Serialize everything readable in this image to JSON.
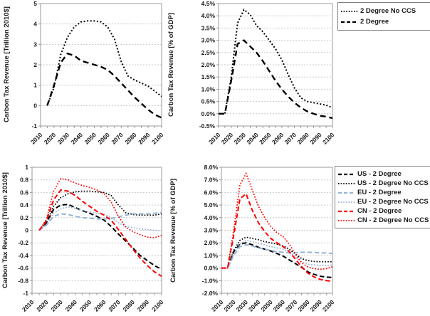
{
  "page": {
    "background": "#ffffff"
  },
  "colors": {
    "us": "#000000",
    "eu": "#95B3D7",
    "cn": "#FF0000",
    "grid": "#c9c9c9",
    "axis": "#9a9a9a",
    "text": "#1a1a1a"
  },
  "years": [
    2010,
    2015,
    2020,
    2025,
    2030,
    2035,
    2040,
    2045,
    2050,
    2055,
    2060,
    2065,
    2070,
    2075,
    2080,
    2085,
    2090,
    2095,
    2100
  ],
  "x_tick_labels": [
    "2010",
    "2020",
    "2030",
    "2040",
    "2050",
    "2060",
    "2070",
    "2080",
    "2090",
    "2100"
  ],
  "chart_data": [
    {
      "type": "line",
      "name": "global-carbon-tax-revenue-trillion",
      "title": "",
      "xlabel": "",
      "ylabel": "Carbon Tax Revenue [Trillion 2010$]",
      "ylim": [
        -1,
        5
      ],
      "grid": true,
      "ytick_values": [
        5,
        4,
        3,
        2,
        1,
        0,
        -1
      ],
      "ytick_labels": [
        "5",
        "4",
        "3",
        "2",
        "1",
        "0",
        "-1"
      ],
      "series": [
        {
          "name": "2 Degree No CCS",
          "color": "#000000",
          "line_style": "dotted",
          "values": [
            null,
            0,
            0.9,
            2.5,
            3.35,
            3.85,
            4.1,
            4.15,
            4.15,
            4.1,
            3.85,
            3.25,
            2.15,
            1.45,
            1.25,
            1.1,
            0.95,
            0.7,
            0.45
          ]
        },
        {
          "name": "2 Degree",
          "color": "#000000",
          "line_style": "dashed",
          "values": [
            null,
            0,
            1.0,
            2.1,
            2.55,
            2.45,
            2.2,
            2.1,
            2.0,
            1.9,
            1.75,
            1.45,
            1.1,
            0.75,
            0.4,
            0.1,
            -0.2,
            -0.45,
            -0.6
          ]
        }
      ],
      "legend": null
    },
    {
      "type": "line",
      "name": "global-carbon-tax-revenue-percent-gdp",
      "title": "",
      "xlabel": "",
      "ylabel": "Carbon Tax Revenue [% of GDP]",
      "ylim": [
        -0.5,
        4.5
      ],
      "grid": true,
      "ytick_values": [
        4.5,
        4.0,
        3.5,
        3.0,
        2.5,
        2.0,
        1.5,
        1.0,
        0.5,
        0.0,
        -0.5
      ],
      "ytick_labels": [
        "4.5%",
        "4.0%",
        "3.5%",
        "3.0%",
        "2.5%",
        "2.0%",
        "1.5%",
        "1.0%",
        "0.5%",
        "0.0%",
        "-0.5%"
      ],
      "series": [
        {
          "name": "2 Degree No CCS",
          "color": "#000000",
          "line_style": "dotted",
          "values": [
            0,
            0,
            1.5,
            3.7,
            4.25,
            4.05,
            3.6,
            3.35,
            3.0,
            2.65,
            2.2,
            1.6,
            1.05,
            0.65,
            0.5,
            0.45,
            0.4,
            0.35,
            0.25
          ]
        },
        {
          "name": "2 Degree",
          "color": "#000000",
          "line_style": "dashed",
          "values": [
            0,
            0,
            1.35,
            2.85,
            3.0,
            2.75,
            2.5,
            2.15,
            1.75,
            1.35,
            1.0,
            0.7,
            0.45,
            0.25,
            0.1,
            0,
            -0.08,
            -0.12,
            -0.18
          ]
        }
      ],
      "legend": {
        "position": "outside-top-right",
        "items": [
          {
            "label": "2 Degree No CCS",
            "color": "#000000",
            "line_style": "dotted"
          },
          {
            "label": "2 Degree",
            "color": "#000000",
            "line_style": "dashed"
          }
        ]
      }
    },
    {
      "type": "line",
      "name": "regional-carbon-tax-revenue-trillion",
      "title": "",
      "xlabel": "",
      "ylabel": "Carbon Tax Revenue [Trillion 2010$]",
      "ylim": [
        -1,
        1
      ],
      "grid": true,
      "ytick_values": [
        1,
        0.8,
        0.6,
        0.4,
        0.2,
        0,
        -0.2,
        -0.4,
        -0.6,
        -0.8,
        -1
      ],
      "ytick_labels": [
        "1",
        "0.8",
        "0.6",
        "0.4",
        "0.2",
        "0",
        "-0.2",
        "-0.4",
        "-0.6",
        "-0.8",
        "-1"
      ],
      "series": [
        {
          "name": "US - 2 Degree",
          "color": "#000000",
          "line_style": "dashed",
          "values": [
            null,
            0,
            0.12,
            0.33,
            0.4,
            0.41,
            0.36,
            0.31,
            0.27,
            0.22,
            0.16,
            0.06,
            -0.06,
            -0.17,
            -0.28,
            -0.4,
            -0.48,
            -0.56,
            -0.62
          ]
        },
        {
          "name": "US - 2 Degree No CCS",
          "color": "#000000",
          "line_style": "dotted",
          "values": [
            null,
            0,
            0.12,
            0.38,
            0.52,
            0.58,
            0.61,
            0.62,
            0.62,
            0.61,
            0.6,
            0.55,
            0.4,
            0.28,
            0.25,
            0.24,
            0.24,
            0.24,
            0.26
          ]
        },
        {
          "name": "EU - 2 Degree",
          "color": "#95B3D7",
          "line_style": "dashed",
          "values": [
            null,
            0,
            0.08,
            0.22,
            0.26,
            0.25,
            0.22,
            0.2,
            0.19,
            0.18,
            0.18,
            0.19,
            0.21,
            0.24,
            0.26,
            0.26,
            0.26,
            0.27,
            0.28
          ]
        },
        {
          "name": "EU - 2 Degree No CCS",
          "color": "#95B3D7",
          "line_style": "dotted",
          "values": [
            null,
            0,
            0.09,
            0.27,
            0.34,
            0.37,
            0.35,
            0.31,
            0.29,
            0.27,
            0.25,
            0.2,
            0.12,
            0.06,
            0.04,
            0.02,
            0.01,
            0,
            -0.01
          ]
        },
        {
          "name": "CN - 2 Degree",
          "color": "#FF0000",
          "line_style": "dashed",
          "values": [
            null,
            0,
            0.15,
            0.48,
            0.64,
            0.62,
            0.55,
            0.46,
            0.38,
            0.3,
            0.24,
            0.16,
            0.01,
            -0.14,
            -0.3,
            -0.44,
            -0.56,
            -0.66,
            -0.73
          ]
        },
        {
          "name": "CN - 2 Degree No CCS",
          "color": "#FF0000",
          "line_style": "dotted",
          "values": [
            null,
            0,
            0.17,
            0.62,
            0.82,
            0.8,
            0.75,
            0.71,
            0.68,
            0.64,
            0.58,
            0.45,
            0.22,
            0.05,
            -0.02,
            -0.07,
            -0.11,
            -0.12,
            -0.08
          ]
        }
      ],
      "legend": null
    },
    {
      "type": "line",
      "name": "regional-carbon-tax-revenue-percent-gdp",
      "title": "",
      "xlabel": "",
      "ylabel": "Carbon Tax Revenue [% of GDP]",
      "ylim": [
        -2,
        8
      ],
      "grid": true,
      "ytick_values": [
        8,
        7,
        6,
        5,
        4,
        3,
        2,
        1,
        0,
        -1,
        -2
      ],
      "ytick_labels": [
        "8.0%",
        "7.0%",
        "6.0%",
        "5.0%",
        "4.0%",
        "3.0%",
        "2.0%",
        "1.0%",
        "0.0%",
        "-1.0%",
        "-2.0%"
      ],
      "series": [
        {
          "name": "US - 2 Degree",
          "color": "#000000",
          "line_style": "dashed",
          "values": [
            0,
            0,
            1.3,
            1.9,
            2.0,
            1.85,
            1.65,
            1.5,
            1.35,
            1.15,
            0.95,
            0.65,
            0.35,
            0.05,
            -0.3,
            -0.5,
            -0.65,
            -0.72,
            -0.75
          ]
        },
        {
          "name": "US - 2 Degree No CCS",
          "color": "#000000",
          "line_style": "dotted",
          "values": [
            0,
            0,
            1.4,
            2.2,
            2.45,
            2.35,
            2.25,
            2.1,
            2.0,
            1.9,
            1.75,
            1.5,
            1.1,
            0.75,
            0.6,
            0.52,
            0.5,
            0.5,
            0.5
          ]
        },
        {
          "name": "EU - 2 Degree",
          "color": "#95B3D7",
          "line_style": "dashed",
          "values": [
            0,
            0,
            1.0,
            1.7,
            1.85,
            1.75,
            1.6,
            1.5,
            1.4,
            1.3,
            1.25,
            1.2,
            1.2,
            1.25,
            1.25,
            1.25,
            1.2,
            1.2,
            1.15
          ]
        },
        {
          "name": "EU - 2 Degree No CCS",
          "color": "#95B3D7",
          "line_style": "dotted",
          "values": [
            0,
            0,
            1.1,
            1.9,
            2.2,
            2.1,
            1.95,
            1.85,
            1.7,
            1.6,
            1.5,
            1.3,
            0.9,
            0.5,
            0.3,
            0.25,
            0.2,
            0.2,
            0.25
          ]
        },
        {
          "name": "CN - 2 Degree",
          "color": "#FF0000",
          "line_style": "dashed",
          "values": [
            0,
            0,
            2.6,
            5.5,
            5.9,
            4.6,
            3.6,
            2.9,
            2.35,
            2.0,
            1.7,
            1.3,
            0.7,
            0.1,
            -0.4,
            -0.7,
            -0.9,
            -1.0,
            -1.05
          ]
        },
        {
          "name": "CN - 2 Degree No CCS",
          "color": "#FF0000",
          "line_style": "dotted",
          "values": [
            0,
            0,
            3.0,
            6.6,
            7.5,
            6.2,
            4.9,
            4.0,
            3.3,
            2.8,
            2.5,
            1.9,
            1.1,
            0.4,
            0.1,
            -0.05,
            -0.1,
            -0.05,
            0.1
          ]
        }
      ],
      "legend": {
        "position": "outside-top-right",
        "items": [
          {
            "label": "US - 2 Degree",
            "color": "#000000",
            "line_style": "dashed"
          },
          {
            "label": "US - 2 Degree No CCS",
            "color": "#000000",
            "line_style": "dotted"
          },
          {
            "label": "EU - 2 Degree",
            "color": "#95B3D7",
            "line_style": "dashed"
          },
          {
            "label": "EU - 2 Degree No CCS",
            "color": "#95B3D7",
            "line_style": "dotted"
          },
          {
            "label": "CN - 2 Degree",
            "color": "#FF0000",
            "line_style": "dashed"
          },
          {
            "label": "CN - 2 Degree No CCS",
            "color": "#FF0000",
            "line_style": "dotted"
          }
        ]
      }
    }
  ]
}
